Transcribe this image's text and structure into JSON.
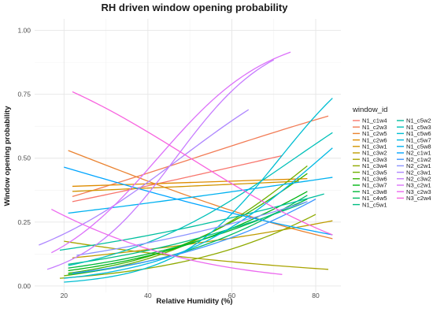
{
  "chart_data": {
    "type": "line",
    "title": "RH driven window opening probability",
    "xlabel": "Relative Humidity (%)",
    "ylabel": "Window opening probability",
    "xlim": [
      13,
      86
    ],
    "ylim": [
      -0.025,
      1.045
    ],
    "xticks": [
      20,
      40,
      60,
      80
    ],
    "yticks": [
      0,
      0.25,
      0.5,
      0.75,
      1
    ],
    "ytick_labels": [
      "0.00",
      "0.25",
      "0.50",
      "0.75",
      "1.00"
    ],
    "grid": true,
    "legend": {
      "title": "window_id",
      "position": "right",
      "columns": 2
    },
    "series": [
      {
        "name": "N1_c1w4",
        "color": "#F8766D",
        "x": [
          22,
          72
        ],
        "p": [
          0.33,
          0.51
        ]
      },
      {
        "name": "N1_c2w3",
        "color": "#F27C56",
        "x": [
          22,
          83
        ],
        "p": [
          0.35,
          0.665
        ]
      },
      {
        "name": "N1_c2w5",
        "color": "#EA8331",
        "x": [
          21,
          84
        ],
        "p": [
          0.53,
          0.185
        ]
      },
      {
        "name": "N1_c2w6",
        "color": "#DE8C00",
        "x": [
          22,
          78
        ],
        "p": [
          0.39,
          0.42
        ]
      },
      {
        "name": "N1_c3w1",
        "color": "#D19500",
        "x": [
          22,
          76
        ],
        "p": [
          0.37,
          0.41
        ]
      },
      {
        "name": "N1_c3w2",
        "color": "#BF9C00",
        "x": [
          22,
          84
        ],
        "p": [
          0.11,
          0.255
        ]
      },
      {
        "name": "N1_c3w3",
        "color": "#A9A400",
        "x": [
          20,
          83
        ],
        "p": [
          0.175,
          0.065
        ]
      },
      {
        "name": "N1_c3w4",
        "color": "#8FAA00",
        "x": [
          19,
          80
        ],
        "p": [
          0.03,
          0.28
        ]
      },
      {
        "name": "N1_c3w5",
        "color": "#6FB000",
        "x": [
          20,
          78
        ],
        "p": [
          0.04,
          0.47
        ]
      },
      {
        "name": "N1_c3w6",
        "color": "#3AB300",
        "x": [
          21,
          78
        ],
        "p": [
          0.05,
          0.44
        ]
      },
      {
        "name": "N1_c3w7",
        "color": "#00B512",
        "x": [
          21,
          78
        ],
        "p": [
          0.06,
          0.37
        ]
      },
      {
        "name": "N1_c3w8",
        "color": "#00B83A",
        "x": [
          21,
          78
        ],
        "p": [
          0.07,
          0.34
        ]
      },
      {
        "name": "N1_c4w5",
        "color": "#00BA60",
        "x": [
          21,
          78
        ],
        "p": [
          0.045,
          0.355
        ]
      },
      {
        "name": "N1_c5w1",
        "color": "#00BD82",
        "x": [
          21,
          78
        ],
        "p": [
          0.085,
          0.33
        ]
      },
      {
        "name": "N1_c5w2",
        "color": "#00BF9F",
        "x": [
          19,
          82
        ],
        "p": [
          0.14,
          0.36
        ]
      },
      {
        "name": "N1_c5w3",
        "color": "#00C0B9",
        "x": [
          21,
          84
        ],
        "p": [
          0.08,
          0.6
        ]
      },
      {
        "name": "N1_c5w6",
        "color": "#00BED2",
        "x": [
          20,
          84
        ],
        "p": [
          0.015,
          0.735
        ]
      },
      {
        "name": "N1_c5w7",
        "color": "#00B9E3",
        "x": [
          20,
          84
        ],
        "p": [
          0.03,
          0.54
        ]
      },
      {
        "name": "N1_c5w8",
        "color": "#00B1F0",
        "x": [
          21,
          84
        ],
        "p": [
          0.285,
          0.425
        ]
      },
      {
        "name": "N2_c1w1",
        "color": "#00A5FF",
        "x": [
          20,
          84
        ],
        "p": [
          0.465,
          0.2
        ]
      },
      {
        "name": "N2_c1w2",
        "color": "#3D96FF",
        "x": [
          22,
          80
        ],
        "p": [
          0.05,
          0.34
        ]
      },
      {
        "name": "N2_c2w1",
        "color": "#8B93FF",
        "x": [
          23,
          78
        ],
        "p": [
          0.12,
          0.33
        ]
      },
      {
        "name": "N2_c3w1",
        "color": "#AE87FF",
        "x": [
          14,
          64
        ],
        "p": [
          0.16,
          0.69
        ]
      },
      {
        "name": "N2_c3w2",
        "color": "#C77CFF",
        "x": [
          16,
          70
        ],
        "p": [
          0.065,
          0.885
        ]
      },
      {
        "name": "N3_c2w1",
        "color": "#DC71FA",
        "x": [
          17,
          74
        ],
        "p": [
          0.13,
          0.915
        ]
      },
      {
        "name": "N3_c2w3",
        "color": "#EC69EF",
        "x": [
          17,
          72
        ],
        "p": [
          0.3,
          0.045
        ]
      },
      {
        "name": "N3_c2w4",
        "color": "#F863DF",
        "x": [
          22,
          84
        ],
        "p": [
          0.76,
          0.2
        ]
      }
    ]
  }
}
